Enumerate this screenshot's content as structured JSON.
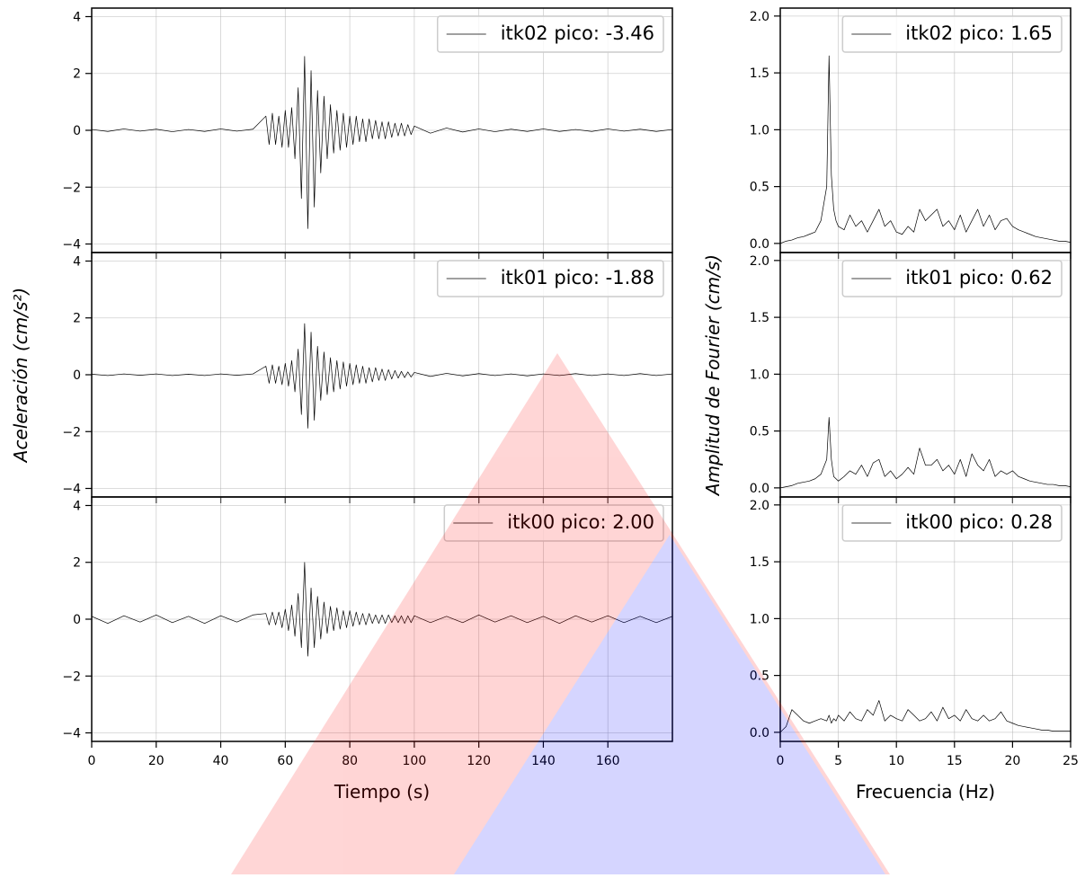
{
  "chart_data": [
    {
      "type": "line",
      "ylabel": "Aceleración (cm/s²)",
      "xlim": [
        0,
        180
      ],
      "ylim": [
        -4.3,
        4.3
      ],
      "xticks": [
        0,
        20,
        40,
        60,
        80,
        100,
        120,
        140,
        160
      ],
      "yticks": [
        {
          "value": -4,
          "label": "−4"
        },
        {
          "value": -2,
          "label": "−2"
        },
        0,
        2,
        4
      ],
      "show_xticklabels": false,
      "grid": true,
      "legend": "upper right",
      "series": [
        {
          "name": "itk02 pico: -3.46",
          "color": "#000000",
          "x": [
            0,
            5,
            10,
            15,
            20,
            25,
            30,
            35,
            40,
            45,
            50,
            54,
            55,
            56,
            57,
            58,
            59,
            60,
            61,
            62,
            63,
            64,
            65,
            66,
            67,
            68,
            69,
            70,
            71,
            72,
            73,
            74,
            75,
            76,
            77,
            78,
            79,
            80,
            81,
            82,
            83,
            84,
            85,
            86,
            87,
            88,
            89,
            90,
            91,
            92,
            93,
            94,
            95,
            96,
            97,
            98,
            99,
            100,
            105,
            110,
            115,
            120,
            125,
            130,
            135,
            140,
            145,
            150,
            155,
            160,
            165,
            170,
            175,
            180
          ],
          "values": [
            0.03,
            -0.04,
            0.05,
            -0.03,
            0.04,
            -0.05,
            0.03,
            -0.04,
            0.05,
            -0.03,
            0.04,
            0.5,
            -0.5,
            0.6,
            -0.5,
            0.5,
            -0.6,
            0.7,
            -0.6,
            0.8,
            -1.0,
            1.5,
            -2.4,
            2.6,
            -3.46,
            2.1,
            -2.7,
            1.4,
            -1.5,
            1.2,
            -1.0,
            0.9,
            -0.8,
            0.7,
            -0.7,
            0.6,
            -0.6,
            0.5,
            -0.5,
            0.5,
            -0.4,
            0.4,
            -0.4,
            0.4,
            -0.3,
            0.35,
            -0.3,
            0.3,
            -0.3,
            0.3,
            -0.25,
            0.25,
            -0.2,
            0.25,
            -0.2,
            0.2,
            -0.15,
            0.15,
            -0.1,
            0.08,
            -0.06,
            0.05,
            -0.05,
            0.04,
            -0.04,
            0.05,
            -0.04,
            0.03,
            -0.04,
            0.05,
            -0.03,
            0.04,
            -0.04,
            0.03
          ]
        }
      ]
    },
    {
      "type": "line",
      "xlim": [
        0,
        180
      ],
      "ylim": [
        -4.3,
        4.3
      ],
      "xticks": [
        0,
        20,
        40,
        60,
        80,
        100,
        120,
        140,
        160
      ],
      "yticks": [
        {
          "value": -4,
          "label": "−4"
        },
        {
          "value": -2,
          "label": "−2"
        },
        0,
        2,
        4
      ],
      "show_xticklabels": false,
      "grid": true,
      "legend": "upper right",
      "series": [
        {
          "name": "itk01 pico: -1.88",
          "color": "#000000",
          "x": [
            0,
            5,
            10,
            15,
            20,
            25,
            30,
            35,
            40,
            45,
            50,
            54,
            55,
            56,
            57,
            58,
            59,
            60,
            61,
            62,
            63,
            64,
            65,
            66,
            67,
            68,
            69,
            70,
            71,
            72,
            73,
            74,
            75,
            76,
            77,
            78,
            79,
            80,
            81,
            82,
            83,
            84,
            85,
            86,
            87,
            88,
            89,
            90,
            91,
            92,
            93,
            94,
            95,
            96,
            97,
            98,
            99,
            100,
            105,
            110,
            115,
            120,
            125,
            130,
            135,
            140,
            145,
            150,
            155,
            160,
            165,
            170,
            175,
            180
          ],
          "values": [
            0.02,
            -0.03,
            0.03,
            -0.02,
            0.03,
            -0.03,
            0.02,
            -0.03,
            0.03,
            -0.02,
            0.03,
            0.3,
            -0.3,
            0.35,
            -0.3,
            0.3,
            -0.35,
            0.4,
            -0.4,
            0.5,
            -0.6,
            0.9,
            -1.4,
            1.8,
            -1.88,
            1.5,
            -1.6,
            1.0,
            -0.9,
            0.8,
            -0.7,
            0.6,
            -0.6,
            0.5,
            -0.5,
            0.45,
            -0.4,
            0.4,
            -0.35,
            0.35,
            -0.3,
            0.3,
            -0.3,
            0.25,
            -0.25,
            0.25,
            -0.2,
            0.2,
            -0.2,
            0.18,
            -0.15,
            0.15,
            -0.12,
            0.12,
            -0.1,
            0.1,
            -0.08,
            0.08,
            -0.06,
            0.05,
            -0.04,
            0.04,
            -0.03,
            0.03,
            -0.04,
            0.03,
            -0.03,
            0.04,
            -0.03,
            0.03,
            -0.03,
            0.04,
            -0.03,
            0.03
          ]
        }
      ]
    },
    {
      "type": "line",
      "xlabel": "Tiempo (s)",
      "xlim": [
        0,
        180
      ],
      "ylim": [
        -4.3,
        4.3
      ],
      "xticks": [
        0,
        20,
        40,
        60,
        80,
        100,
        120,
        140,
        160
      ],
      "yticks": [
        {
          "value": -4,
          "label": "−4"
        },
        {
          "value": -2,
          "label": "−2"
        },
        0,
        2,
        4
      ],
      "show_xticklabels": true,
      "grid": true,
      "legend": "upper right",
      "series": [
        {
          "name": "itk00 pico: 2.00",
          "color": "#000000",
          "x": [
            0,
            5,
            10,
            15,
            20,
            25,
            30,
            35,
            40,
            45,
            50,
            54,
            55,
            56,
            57,
            58,
            59,
            60,
            61,
            62,
            63,
            64,
            65,
            66,
            67,
            68,
            69,
            70,
            71,
            72,
            73,
            74,
            75,
            76,
            77,
            78,
            79,
            80,
            81,
            82,
            83,
            84,
            85,
            86,
            87,
            88,
            89,
            90,
            91,
            92,
            93,
            94,
            95,
            96,
            97,
            98,
            99,
            100,
            105,
            110,
            115,
            120,
            125,
            130,
            135,
            140,
            145,
            150,
            155,
            160,
            165,
            170,
            175,
            180
          ],
          "values": [
            0.1,
            -0.15,
            0.12,
            -0.1,
            0.15,
            -0.12,
            0.1,
            -0.15,
            0.12,
            -0.1,
            0.15,
            0.2,
            -0.2,
            0.25,
            -0.2,
            0.25,
            -0.3,
            0.35,
            -0.4,
            0.5,
            -0.6,
            0.9,
            -1.0,
            2.0,
            -1.3,
            1.1,
            -1.0,
            0.8,
            -0.7,
            0.6,
            -0.5,
            0.45,
            -0.4,
            0.4,
            -0.35,
            0.3,
            -0.3,
            0.3,
            -0.25,
            0.25,
            -0.2,
            0.2,
            -0.2,
            0.2,
            -0.15,
            0.15,
            -0.15,
            0.15,
            -0.15,
            0.15,
            -0.12,
            0.12,
            -0.12,
            0.12,
            -0.15,
            0.12,
            -0.12,
            0.12,
            -0.12,
            0.1,
            -0.12,
            0.15,
            -0.1,
            0.12,
            -0.12,
            0.1,
            -0.15,
            0.12,
            -0.1,
            0.12,
            -0.12,
            0.1,
            -0.12,
            0.1
          ]
        }
      ]
    },
    {
      "type": "line",
      "ylabel": "Amplitud de Fourier (cm/s)",
      "xlim": [
        0,
        25
      ],
      "ylim": [
        -0.08,
        2.07
      ],
      "xticks": [
        0,
        5,
        10,
        15,
        20,
        25
      ],
      "yticks": [
        {
          "value": 0,
          "label": "0.0"
        },
        {
          "value": 0.5,
          "label": "0.5"
        },
        {
          "value": 1,
          "label": "1.0"
        },
        {
          "value": 1.5,
          "label": "1.5"
        },
        {
          "value": 2,
          "label": "2.0"
        }
      ],
      "show_xticklabels": false,
      "grid": true,
      "legend": "upper right",
      "series": [
        {
          "name": "itk02 pico: 1.65",
          "color": "#000000",
          "x": [
            0,
            0.5,
            1,
            1.5,
            2,
            2.5,
            3,
            3.5,
            4,
            4.2,
            4.4,
            4.6,
            4.8,
            5,
            5.5,
            6,
            6.5,
            7,
            7.5,
            8,
            8.5,
            9,
            9.5,
            10,
            10.5,
            11,
            11.5,
            12,
            12.5,
            13,
            13.5,
            14,
            14.5,
            15,
            15.5,
            16,
            16.5,
            17,
            17.5,
            18,
            18.5,
            19,
            19.5,
            20,
            20.5,
            21,
            21.5,
            22,
            22.5,
            23,
            23.5,
            24,
            24.5,
            25
          ],
          "values": [
            0,
            0.02,
            0.03,
            0.05,
            0.06,
            0.08,
            0.1,
            0.2,
            0.5,
            1.65,
            0.6,
            0.3,
            0.2,
            0.15,
            0.12,
            0.25,
            0.15,
            0.2,
            0.1,
            0.2,
            0.3,
            0.15,
            0.2,
            0.1,
            0.08,
            0.15,
            0.1,
            0.3,
            0.2,
            0.25,
            0.3,
            0.15,
            0.2,
            0.12,
            0.25,
            0.1,
            0.2,
            0.3,
            0.15,
            0.25,
            0.12,
            0.2,
            0.22,
            0.15,
            0.12,
            0.1,
            0.08,
            0.06,
            0.05,
            0.04,
            0.03,
            0.02,
            0.02,
            0.01
          ]
        }
      ]
    },
    {
      "type": "line",
      "xlim": [
        0,
        25
      ],
      "ylim": [
        -0.08,
        2.07
      ],
      "xticks": [
        0,
        5,
        10,
        15,
        20,
        25
      ],
      "yticks": [
        {
          "value": 0,
          "label": "0.0"
        },
        {
          "value": 0.5,
          "label": "0.5"
        },
        {
          "value": 1,
          "label": "1.0"
        },
        {
          "value": 1.5,
          "label": "1.5"
        },
        {
          "value": 2,
          "label": "2.0"
        }
      ],
      "show_xticklabels": false,
      "grid": true,
      "legend": "upper right",
      "series": [
        {
          "name": "itk01 pico: 0.62",
          "color": "#000000",
          "x": [
            0,
            0.5,
            1,
            1.5,
            2,
            2.5,
            3,
            3.5,
            4,
            4.2,
            4.4,
            4.6,
            4.8,
            5,
            5.5,
            6,
            6.5,
            7,
            7.5,
            8,
            8.5,
            9,
            9.5,
            10,
            10.5,
            11,
            11.5,
            12,
            12.5,
            13,
            13.5,
            14,
            14.5,
            15,
            15.5,
            16,
            16.5,
            17,
            17.5,
            18,
            18.5,
            19,
            19.5,
            20,
            20.5,
            21,
            21.5,
            22,
            22.5,
            23,
            23.5,
            24,
            24.5,
            25
          ],
          "values": [
            0,
            0.01,
            0.02,
            0.04,
            0.05,
            0.06,
            0.08,
            0.12,
            0.25,
            0.62,
            0.25,
            0.1,
            0.08,
            0.06,
            0.1,
            0.15,
            0.12,
            0.2,
            0.1,
            0.22,
            0.25,
            0.1,
            0.15,
            0.08,
            0.12,
            0.18,
            0.12,
            0.35,
            0.2,
            0.2,
            0.25,
            0.15,
            0.2,
            0.12,
            0.25,
            0.1,
            0.3,
            0.2,
            0.15,
            0.25,
            0.1,
            0.15,
            0.12,
            0.15,
            0.1,
            0.08,
            0.06,
            0.05,
            0.04,
            0.03,
            0.03,
            0.02,
            0.02,
            0.01
          ]
        }
      ]
    },
    {
      "type": "line",
      "xlabel": "Frecuencia (Hz)",
      "xlim": [
        0,
        25
      ],
      "ylim": [
        -0.08,
        2.07
      ],
      "xticks": [
        0,
        5,
        10,
        15,
        20,
        25
      ],
      "yticks": [
        {
          "value": 0,
          "label": "0.0"
        },
        {
          "value": 0.5,
          "label": "0.5"
        },
        {
          "value": 1,
          "label": "1.0"
        },
        {
          "value": 1.5,
          "label": "1.5"
        },
        {
          "value": 2,
          "label": "2.0"
        }
      ],
      "show_xticklabels": true,
      "grid": true,
      "legend": "upper right",
      "series": [
        {
          "name": "itk00 pico: 0.28",
          "color": "#000000",
          "x": [
            0,
            0.5,
            1,
            1.5,
            2,
            2.5,
            3,
            3.5,
            4,
            4.2,
            4.4,
            4.6,
            4.8,
            5,
            5.5,
            6,
            6.5,
            7,
            7.5,
            8,
            8.5,
            9,
            9.5,
            10,
            10.5,
            11,
            11.5,
            12,
            12.5,
            13,
            13.5,
            14,
            14.5,
            15,
            15.5,
            16,
            16.5,
            17,
            17.5,
            18,
            18.5,
            19,
            19.5,
            20,
            20.5,
            21,
            21.5,
            22,
            22.5,
            23,
            23.5,
            24,
            24.5,
            25
          ],
          "values": [
            0,
            0.05,
            0.2,
            0.15,
            0.1,
            0.08,
            0.1,
            0.12,
            0.1,
            0.15,
            0.08,
            0.12,
            0.1,
            0.15,
            0.1,
            0.18,
            0.12,
            0.1,
            0.2,
            0.15,
            0.28,
            0.1,
            0.15,
            0.12,
            0.1,
            0.2,
            0.15,
            0.1,
            0.12,
            0.18,
            0.1,
            0.22,
            0.12,
            0.15,
            0.1,
            0.2,
            0.12,
            0.1,
            0.15,
            0.1,
            0.12,
            0.18,
            0.1,
            0.08,
            0.06,
            0.05,
            0.04,
            0.03,
            0.02,
            0.02,
            0.01,
            0.01,
            0.01,
            0.01
          ]
        }
      ]
    }
  ]
}
